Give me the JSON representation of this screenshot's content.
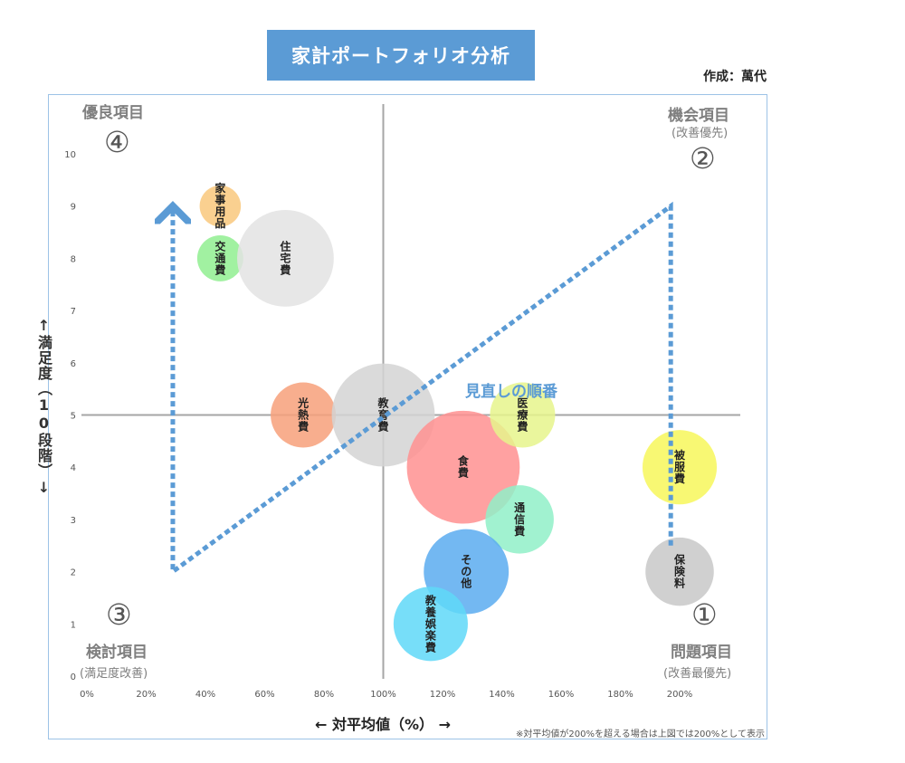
{
  "header": {
    "title": "家計ポートフォリオ分析",
    "author": "作成：萬代"
  },
  "quadrants": {
    "q4": {
      "name": "優良項目",
      "number": "④",
      "sub": ""
    },
    "q2": {
      "name": "機会項目",
      "number": "②",
      "sub": "(改善優先)"
    },
    "q3": {
      "name": "検討項目",
      "number": "③",
      "sub": "(満足度改善)"
    },
    "q1": {
      "name": "問題項目",
      "number": "①",
      "sub": "(改善最優先)"
    }
  },
  "axes": {
    "ylabel": "↑満足度（10段階）↓",
    "xlabel": "← 対平均値（%） →",
    "note": "※対平均値が200%を超える場合は上図では200%として表示"
  },
  "review_label": "見直しの順番",
  "colors": {
    "arrow": "#5b9bd5",
    "axis": "#a6a6a6"
  },
  "chart_data": {
    "type": "scatter",
    "title": "家計ポートフォリオ分析",
    "xlabel": "対平均値（%）",
    "ylabel": "満足度（10段階）",
    "xlim": [
      0,
      200
    ],
    "ylim": [
      0,
      10
    ],
    "x_ticks": [
      "0%",
      "20%",
      "40%",
      "60%",
      "80%",
      "100%",
      "120%",
      "140%",
      "160%",
      "180%",
      "200%"
    ],
    "y_ticks": [
      "0",
      "1",
      "2",
      "3",
      "4",
      "5",
      "6",
      "7",
      "8",
      "9",
      "10"
    ],
    "quadrant_divider": {
      "x": 100,
      "y": 5
    },
    "points": [
      {
        "label": "家事用品",
        "x": 45,
        "y": 9,
        "size": 0.4,
        "color": "#f9c87c"
      },
      {
        "label": "交通費",
        "x": 45,
        "y": 8,
        "size": 0.5,
        "color": "#90ee90"
      },
      {
        "label": "住宅費",
        "x": 67,
        "y": 8,
        "size": 2.2,
        "color": "#e3e3e3"
      },
      {
        "label": "光熱費",
        "x": 73,
        "y": 5,
        "size": 1.0,
        "color": "#f7a07a"
      },
      {
        "label": "教育費",
        "x": 100,
        "y": 5,
        "size": 2.5,
        "color": "#d3d3d3"
      },
      {
        "label": "食費",
        "x": 127,
        "y": 4,
        "size": 3.0,
        "color": "#ff9090"
      },
      {
        "label": "医療費",
        "x": 147,
        "y": 5,
        "size": 1.0,
        "color": "#e6f58c"
      },
      {
        "label": "通信費",
        "x": 146,
        "y": 3,
        "size": 1.1,
        "color": "#90f0c8"
      },
      {
        "label": "その他",
        "x": 128,
        "y": 2,
        "size": 1.7,
        "color": "#5aabf0"
      },
      {
        "label": "教養娯楽費",
        "x": 116,
        "y": 1,
        "size": 1.3,
        "color": "#5fd8f8"
      },
      {
        "label": "被服費",
        "x": 200,
        "y": 4,
        "size": 1.3,
        "color": "#f7f75a"
      },
      {
        "label": "保険料",
        "x": 200,
        "y": 2,
        "size": 1.1,
        "color": "#c8c8c8"
      }
    ],
    "review_path": [
      {
        "x": 29,
        "y": 9
      },
      {
        "x": 29,
        "y": 2
      },
      {
        "x": 197,
        "y": 9
      },
      {
        "x": 197,
        "y": 2.5
      }
    ]
  }
}
